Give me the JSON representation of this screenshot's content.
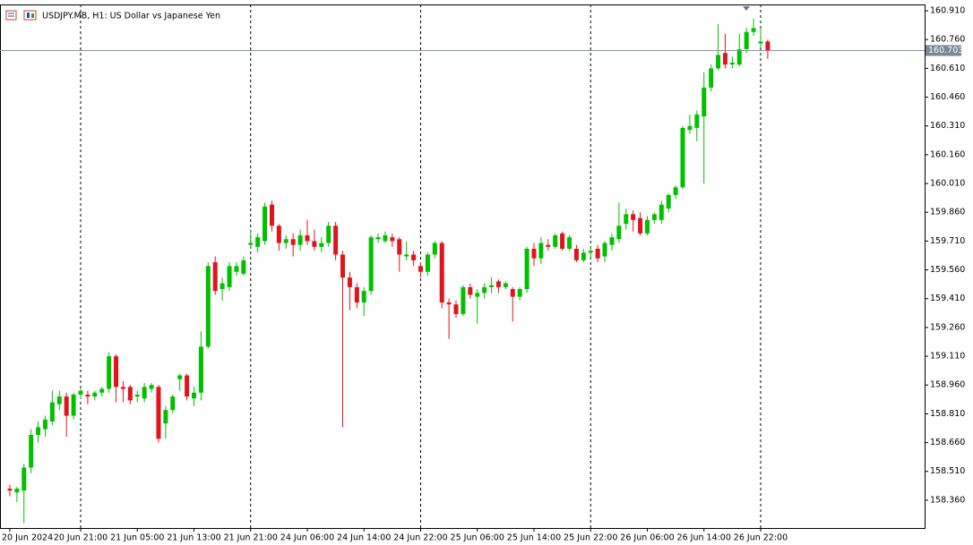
{
  "chart_data": {
    "type": "candlestick",
    "title": "USDJPY.MB, H1:  US Dollar vs Japanese Yen",
    "categories": [
      "20 Jun 2024",
      null,
      null,
      null,
      null,
      null,
      null,
      null,
      null,
      null,
      "20 Jun 21:00",
      null,
      null,
      null,
      null,
      null,
      null,
      null,
      "21 Jun 05:00",
      null,
      null,
      null,
      null,
      null,
      null,
      null,
      "21 Jun 13:00",
      null,
      null,
      null,
      null,
      null,
      null,
      null,
      "21 Jun 21:00",
      null,
      null,
      null,
      null,
      null,
      null,
      null,
      "24 Jun 06:00",
      null,
      null,
      null,
      null,
      null,
      null,
      null,
      "24 Jun 14:00",
      null,
      null,
      null,
      null,
      null,
      null,
      null,
      "24 Jun 22:00",
      null,
      null,
      null,
      null,
      null,
      null,
      null,
      "25 Jun 06:00",
      null,
      null,
      null,
      null,
      null,
      null,
      null,
      "25 Jun 14:00",
      null,
      null,
      null,
      null,
      null,
      null,
      null,
      "25 Jun 22:00",
      null,
      null,
      null,
      null,
      null,
      null,
      null,
      "26 Jun 06:00",
      null,
      null,
      null,
      null,
      null,
      null,
      null,
      "26 Jun 14:00",
      null,
      null,
      null,
      null,
      null,
      null,
      null,
      "26 Jun 22:00",
      null
    ],
    "open": [
      158.42,
      158.4,
      158.41,
      158.53,
      158.7,
      158.73,
      158.77,
      158.86,
      158.9,
      158.8,
      158.91,
      158.91,
      158.9,
      158.92,
      158.94,
      159.11,
      158.95,
      158.95,
      158.9,
      158.89,
      158.94,
      158.95,
      158.76,
      158.83,
      158.99,
      159.01,
      158.89,
      158.92,
      159.16,
      159.6,
      159.46,
      159.47,
      159.55,
      159.54,
      159.69,
      159.68,
      159.71,
      159.9,
      159.79,
      159.7,
      159.72,
      159.69,
      159.74,
      159.71,
      159.68,
      159.7,
      159.79,
      159.64,
      159.52,
      159.47,
      159.39,
      159.45,
      159.72,
      159.71,
      159.73,
      159.72,
      159.63,
      159.64,
      159.58,
      159.55,
      159.64,
      159.7,
      159.39,
      159.38,
      159.33,
      159.47,
      159.42,
      159.44,
      159.47,
      159.5,
      159.47,
      159.46,
      159.42,
      159.46,
      159.67,
      159.62,
      159.69,
      159.68,
      159.75,
      159.67,
      159.67,
      159.61,
      159.65,
      159.67,
      159.63,
      159.69,
      159.72,
      159.8,
      159.85,
      159.83,
      159.75,
      159.82,
      159.82,
      159.88,
      159.95,
      159.99,
      160.29,
      160.3,
      160.36,
      160.51,
      160.61,
      160.69,
      160.63,
      160.63,
      160.71,
      160.8,
      160.74,
      160.75
    ],
    "high": [
      158.44,
      158.43,
      158.55,
      158.73,
      158.77,
      158.8,
      158.93,
      158.93,
      158.92,
      158.92,
      158.94,
      158.93,
      158.93,
      158.95,
      159.13,
      159.12,
      158.98,
      158.96,
      158.93,
      158.97,
      158.97,
      158.96,
      158.85,
      158.91,
      159.02,
      159.02,
      158.95,
      159.24,
      159.6,
      159.63,
      159.52,
      159.6,
      159.6,
      159.63,
      159.77,
      159.75,
      159.91,
      159.92,
      159.8,
      159.74,
      159.75,
      159.77,
      159.82,
      159.77,
      159.73,
      159.81,
      159.81,
      159.66,
      159.55,
      159.49,
      159.47,
      159.74,
      159.75,
      159.76,
      159.75,
      159.73,
      159.71,
      159.66,
      159.6,
      159.65,
      159.71,
      159.71,
      159.41,
      159.4,
      159.48,
      159.49,
      159.46,
      159.49,
      159.52,
      159.51,
      159.5,
      159.47,
      159.47,
      159.68,
      159.7,
      159.73,
      159.72,
      159.75,
      159.76,
      159.74,
      159.69,
      159.67,
      159.68,
      159.69,
      159.71,
      159.75,
      159.91,
      159.88,
      159.87,
      159.86,
      159.84,
      159.86,
      159.92,
      159.96,
      160.0,
      160.31,
      160.37,
      160.39,
      160.59,
      160.63,
      160.84,
      160.79,
      160.67,
      160.79,
      160.82,
      160.87,
      160.82,
      160.76
    ],
    "low": [
      158.38,
      158.35,
      158.24,
      158.5,
      158.66,
      158.69,
      158.75,
      158.83,
      158.69,
      158.78,
      158.89,
      158.86,
      158.88,
      158.9,
      158.92,
      158.87,
      158.87,
      158.86,
      158.87,
      158.87,
      158.92,
      158.66,
      158.68,
      158.81,
      158.93,
      158.88,
      158.85,
      158.88,
      159.15,
      159.43,
      159.4,
      159.45,
      159.53,
      159.53,
      159.67,
      159.65,
      159.69,
      159.76,
      159.66,
      159.67,
      159.63,
      159.66,
      159.69,
      159.66,
      159.65,
      159.68,
      159.61,
      158.74,
      159.35,
      159.36,
      159.32,
      159.43,
      159.7,
      159.7,
      159.68,
      159.55,
      159.61,
      159.58,
      159.52,
      159.53,
      159.62,
      159.36,
      159.2,
      159.31,
      159.32,
      159.41,
      159.28,
      159.41,
      159.44,
      159.44,
      159.46,
      159.29,
      159.4,
      159.44,
      159.58,
      159.59,
      159.66,
      159.67,
      159.66,
      159.66,
      159.6,
      159.6,
      159.62,
      159.6,
      159.6,
      159.66,
      159.7,
      159.77,
      159.76,
      159.74,
      159.74,
      159.8,
      159.8,
      159.86,
      159.93,
      159.98,
      160.27,
      160.23,
      160.01,
      160.49,
      160.6,
      160.61,
      160.61,
      160.62,
      160.69,
      160.78,
      160.72,
      160.66
    ],
    "close": [
      158.41,
      158.42,
      158.53,
      158.7,
      158.74,
      158.78,
      158.87,
      158.9,
      158.8,
      158.91,
      158.93,
      158.9,
      158.92,
      158.94,
      159.11,
      158.95,
      158.94,
      158.88,
      158.91,
      158.95,
      158.96,
      158.68,
      158.83,
      158.9,
      159.01,
      158.9,
      158.92,
      159.16,
      159.58,
      159.45,
      159.49,
      159.58,
      159.58,
      159.61,
      159.7,
      159.73,
      159.89,
      159.79,
      159.7,
      159.72,
      159.69,
      159.74,
      159.71,
      159.68,
      159.7,
      159.79,
      159.64,
      159.52,
      159.47,
      159.39,
      159.45,
      159.73,
      159.73,
      159.74,
      159.71,
      159.64,
      159.64,
      159.61,
      159.55,
      159.64,
      159.7,
      159.39,
      159.38,
      159.33,
      159.47,
      159.43,
      159.44,
      159.47,
      159.48,
      159.47,
      159.49,
      159.42,
      159.46,
      159.67,
      159.62,
      159.7,
      159.68,
      159.74,
      159.67,
      159.73,
      159.61,
      159.65,
      159.66,
      159.62,
      159.7,
      159.73,
      159.79,
      159.85,
      159.82,
      159.75,
      159.82,
      159.85,
      159.9,
      159.95,
      159.99,
      160.3,
      160.31,
      160.37,
      160.51,
      160.61,
      160.68,
      160.63,
      160.64,
      160.71,
      160.8,
      160.82,
      160.75,
      160.7
    ],
    "up_color": "#00c000",
    "down_color": "#e0141e",
    "last_price": 160.703,
    "ylim": [
      158.215,
      160.943
    ],
    "yticks": [
      {
        "value": 158.36,
        "label": "158.360"
      },
      {
        "value": 158.51,
        "label": "158.510"
      },
      {
        "value": 158.66,
        "label": "158.660"
      },
      {
        "value": 158.81,
        "label": "158.810"
      },
      {
        "value": 158.96,
        "label": "158.960"
      },
      {
        "value": 159.11,
        "label": "159.110"
      },
      {
        "value": 159.26,
        "label": "159.260"
      },
      {
        "value": 159.41,
        "label": "159.410"
      },
      {
        "value": 159.56,
        "label": "159.560"
      },
      {
        "value": 159.71,
        "label": "159.710"
      },
      {
        "value": 159.86,
        "label": "159.860"
      },
      {
        "value": 160.01,
        "label": "160.010"
      },
      {
        "value": 160.16,
        "label": "160.160"
      },
      {
        "value": 160.31,
        "label": "160.310"
      },
      {
        "value": 160.46,
        "label": "160.460"
      },
      {
        "value": 160.61,
        "label": "160.610"
      },
      {
        "value": 160.76,
        "label": "160.760"
      },
      {
        "value": 160.91,
        "label": "160.910"
      }
    ],
    "period_separators": true
  }
}
